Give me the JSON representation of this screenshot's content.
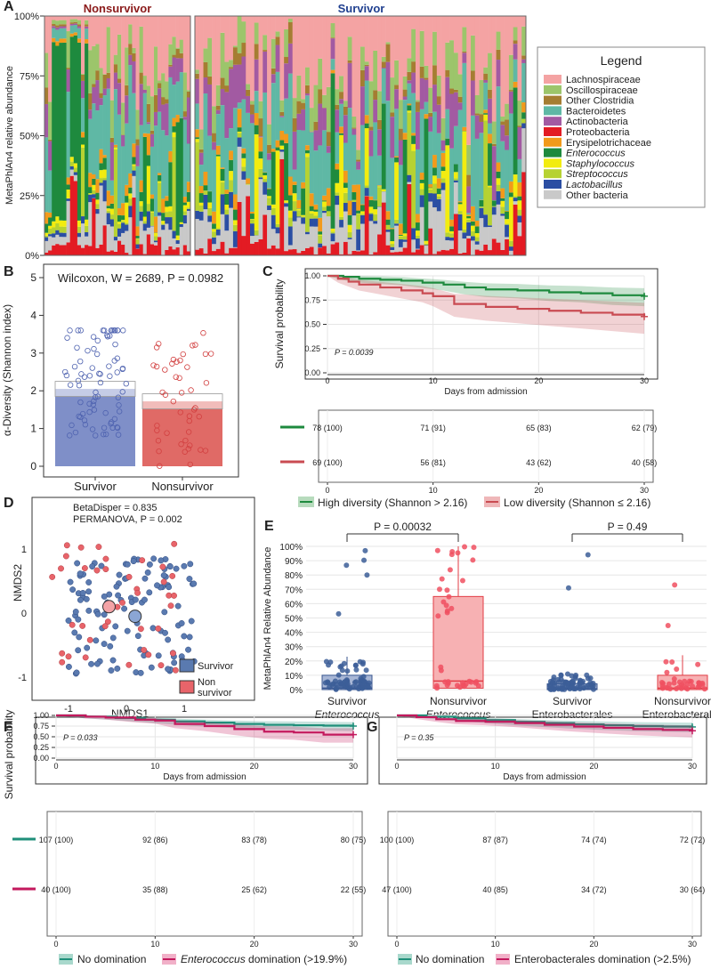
{
  "colors": {
    "nonsurvivor_title": "#8b1a1a",
    "survivor_title": "#1f3f8f",
    "survivor_fill": "#7f8fc8",
    "nonsurvivor_fill": "#e06a66",
    "high_div": "#1e8a3e",
    "low_div": "#c94b52",
    "no_dom": "#1f8f7a",
    "dom": "#c3195d",
    "box_surv": "#5b77b0",
    "box_non": "#f08a8e"
  },
  "chart_data": [
    {
      "id": "A",
      "type": "bar",
      "stacked": true,
      "panel_letter": "A",
      "groups": [
        {
          "title": "Nonsurvivor",
          "n_patients": 40
        },
        {
          "title": "Survivor",
          "n_patients": 78
        }
      ],
      "ylabel": "MetaPhlAn4 relative abundance",
      "yticks": [
        "0%",
        "25%",
        "50%",
        "75%",
        "100%"
      ],
      "legend_title": "Legend",
      "legend": [
        {
          "label": "Lachnospiraceae",
          "color": "#f4a3a3",
          "italic": false
        },
        {
          "label": "Oscillospiraceae",
          "color": "#9cc56b",
          "italic": false
        },
        {
          "label": "Other Clostridia",
          "color": "#a57d32",
          "italic": false
        },
        {
          "label": "Bacteroidetes",
          "color": "#5fb8a5",
          "italic": false
        },
        {
          "label": "Actinobacteria",
          "color": "#a25aa2",
          "italic": false
        },
        {
          "label": "Proteobacteria",
          "color": "#e31b23",
          "italic": false
        },
        {
          "label": "Erysipelotrichaceae",
          "color": "#f29a1b",
          "italic": false
        },
        {
          "label": "Enterococcus",
          "color": "#1e8a3e",
          "italic": true
        },
        {
          "label": "Staphylococcus",
          "color": "#f2ec10",
          "italic": true
        },
        {
          "label": "Streptococcus",
          "color": "#b6d232",
          "italic": true
        },
        {
          "label": "Lactobacillus",
          "color": "#2b4ea3",
          "italic": true
        },
        {
          "label": "Other bacteria",
          "color": "#c9c9c9",
          "italic": false
        }
      ]
    },
    {
      "id": "B",
      "type": "bar",
      "panel_letter": "B",
      "annotation": "Wilcoxon, W = 2689, P = 0.0982",
      "categories": [
        "Survivor",
        "Nonsurvivor"
      ],
      "values": [
        2.05,
        1.72
      ],
      "ylabel": "α-Diversity (Shannon index)",
      "ylim": [
        0,
        5
      ],
      "yticks": [
        "0",
        "1",
        "2",
        "3",
        "4",
        "5"
      ]
    },
    {
      "id": "C",
      "type": "line",
      "panel_letter": "C",
      "ylabel": "Survival probability",
      "xlabel": "Days from admission",
      "pvalue": "P = 0.0039",
      "xticks": [
        "0",
        "10",
        "20",
        "30"
      ],
      "yticks": [
        "0.00",
        "0.25",
        "0.50",
        "0.75",
        "1.00"
      ],
      "xlim": [
        0,
        30
      ],
      "ylim": [
        0,
        1
      ],
      "series": [
        {
          "name": "High diversity (Shannon > 2.16)",
          "color": "#1e8a3e",
          "x": [
            0,
            1.5,
            3,
            5,
            7,
            9,
            11,
            13,
            15,
            18,
            21,
            24,
            27,
            30
          ],
          "y": [
            1.0,
            0.99,
            0.97,
            0.96,
            0.95,
            0.93,
            0.91,
            0.88,
            0.86,
            0.85,
            0.83,
            0.82,
            0.8,
            0.79
          ]
        },
        {
          "name": "Low diversity (Shannon ≤ 2.16)",
          "color": "#c94b52",
          "x": [
            0,
            1,
            2,
            3,
            5,
            7,
            9,
            10,
            12,
            15,
            18,
            21,
            24,
            27,
            30
          ],
          "y": [
            1.0,
            0.97,
            0.94,
            0.91,
            0.88,
            0.85,
            0.82,
            0.79,
            0.71,
            0.68,
            0.66,
            0.64,
            0.62,
            0.6,
            0.58
          ]
        }
      ],
      "risk_table": [
        {
          "series": "High diversity (Shannon > 2.16)",
          "values": [
            "78 (100)",
            "71 (91)",
            "65 (83)",
            "62 (79)"
          ]
        },
        {
          "series": "Low diversity (Shannon ≤ 2.16)",
          "values": [
            "69 (100)",
            "56 (81)",
            "43 (62)",
            "40 (58)"
          ]
        }
      ],
      "legend": [
        "High diversity (Shannon > 2.16)",
        "Low diversity (Shannon ≤ 2.16)"
      ]
    },
    {
      "id": "D",
      "type": "scatter",
      "panel_letter": "D",
      "xlabel": "NMDS1",
      "ylabel": "NMDS2",
      "annotation1": "BetaDisper = 0.835",
      "annotation2": "PERMANOVA, P = 0.002",
      "xticks": [
        "-1",
        "0",
        "1"
      ],
      "yticks": [
        "-1",
        "0",
        "1"
      ],
      "legend": [
        "Survivor",
        "Non survivor"
      ],
      "centroids": {
        "Survivor": [
          0.15,
          -0.05
        ],
        "Nonsurvivor": [
          -0.15,
          0.05
        ]
      }
    },
    {
      "id": "E",
      "type": "box",
      "panel_letter": "E",
      "ylabel": "MetaPhlAn4 Relative Abundance",
      "yticks": [
        "0%",
        "10%",
        "20%",
        "30%",
        "40%",
        "50%",
        "60%",
        "70%",
        "80%",
        "90%",
        "100%"
      ],
      "categories": [
        {
          "line1": "Survivor",
          "line2": "Enterococcus",
          "italic": true,
          "q1": 0,
          "median": 1,
          "q3": 10,
          "whisker": 23
        },
        {
          "line1": "Nonsurvivor",
          "line2": "Enterococcus",
          "italic": true,
          "q1": 1,
          "median": 6,
          "q3": 65,
          "whisker": 100
        },
        {
          "line1": "Survivor",
          "line2": "Enterobacterales",
          "italic": false,
          "q1": 0,
          "median": 0.5,
          "q3": 4,
          "whisker": 8
        },
        {
          "line1": "Nonsurvivor",
          "line2": "Enterobacterales",
          "italic": false,
          "q1": 0,
          "median": 1,
          "q3": 10,
          "whisker": 24
        }
      ],
      "comparisons": [
        {
          "label": "P = 0.00032"
        },
        {
          "label": "P = 0.49"
        }
      ]
    },
    {
      "id": "F",
      "type": "line",
      "panel_letter": "F",
      "ylabel": "Survival probability",
      "xlabel": "Days from admission",
      "pvalue": "P = 0.033",
      "xticks": [
        "0",
        "10",
        "20",
        "30"
      ],
      "yticks": [
        "0.00",
        "0.25",
        "0.50",
        "0.75",
        "1.00"
      ],
      "series": [
        {
          "name": "No domination",
          "color": "#1f8f7a",
          "x": [
            0,
            3,
            6,
            9,
            12,
            15,
            18,
            21,
            24,
            27,
            30
          ],
          "y": [
            1.0,
            0.97,
            0.94,
            0.9,
            0.86,
            0.83,
            0.8,
            0.78,
            0.77,
            0.76,
            0.75
          ]
        },
        {
          "name": "Enterococcus domination (>19.9%)",
          "color": "#c3195d",
          "x": [
            0,
            3,
            5,
            8,
            10,
            12,
            15,
            18,
            21,
            24,
            27,
            30
          ],
          "y": [
            1.0,
            0.97,
            0.95,
            0.9,
            0.88,
            0.8,
            0.75,
            0.68,
            0.62,
            0.6,
            0.55,
            0.55
          ]
        }
      ],
      "risk_table": [
        {
          "series": "No domination",
          "values": [
            "107 (100)",
            "92 (86)",
            "83 (78)",
            "80 (75)"
          ]
        },
        {
          "series": "Enterococcus domination (>19.9%)",
          "values": [
            "40 (100)",
            "35 (88)",
            "25 (62)",
            "22 (55)"
          ]
        }
      ],
      "legend_no": "No domination",
      "legend_dom_italic": "Enterococcus",
      "legend_dom_rest": " domination (>19.9%)"
    },
    {
      "id": "G",
      "type": "line",
      "panel_letter": "G",
      "xlabel": "Days from admission",
      "pvalue": "P = 0.35",
      "xticks": [
        "0",
        "10",
        "20",
        "30"
      ],
      "series": [
        {
          "name": "No domination",
          "color": "#1f8f7a",
          "x": [
            0,
            3,
            6,
            9,
            12,
            15,
            18,
            21,
            24,
            27,
            30
          ],
          "y": [
            1.0,
            0.97,
            0.93,
            0.89,
            0.85,
            0.82,
            0.79,
            0.77,
            0.75,
            0.74,
            0.73
          ]
        },
        {
          "name": "Enterobacterales domination (>2.5%)",
          "color": "#c3195d",
          "x": [
            0,
            2,
            4,
            6,
            9,
            12,
            15,
            18,
            21,
            24,
            27,
            30
          ],
          "y": [
            1.0,
            0.96,
            0.91,
            0.87,
            0.85,
            0.82,
            0.78,
            0.74,
            0.71,
            0.68,
            0.66,
            0.64
          ]
        }
      ],
      "risk_table": [
        {
          "series": "No domination",
          "values": [
            "100 (100)",
            "87 (87)",
            "74 (74)",
            "72 (72)"
          ]
        },
        {
          "series": "Enterobacterales domination (>2.5%)",
          "values": [
            "47 (100)",
            "40 (85)",
            "34 (72)",
            "30 (64)"
          ]
        }
      ],
      "legend_no": "No domination",
      "legend_dom": "Enterobacterales domination (>2.5%)"
    }
  ]
}
